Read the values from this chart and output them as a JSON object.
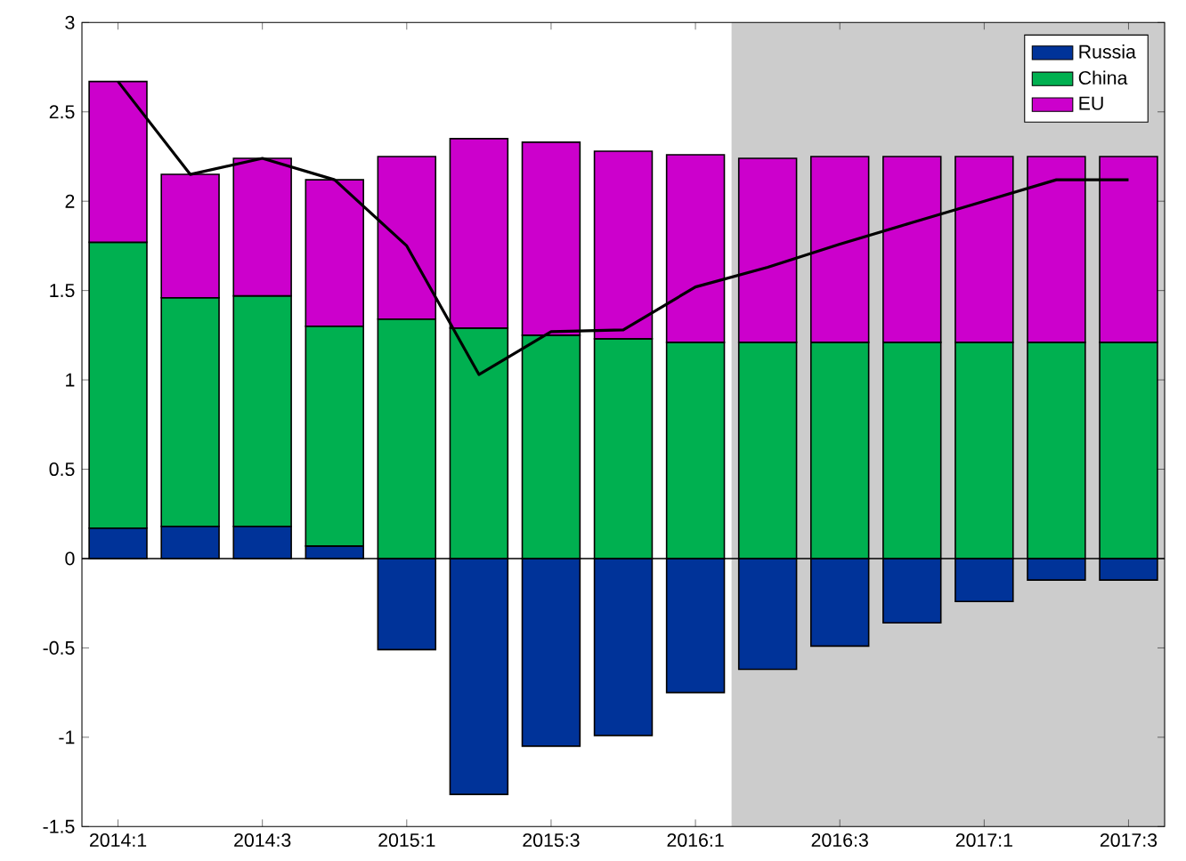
{
  "chart_data": {
    "type": "bar",
    "stacked": true,
    "categories": [
      "2014:1",
      null,
      "2014:3",
      null,
      "2015:1",
      null,
      "2015:3",
      null,
      "2016:1",
      null,
      "2016:3",
      null,
      "2017:1",
      null,
      "2017:3"
    ],
    "series": [
      {
        "name": "Russia",
        "color": "#003399",
        "values": [
          0.17,
          0.18,
          0.18,
          0.07,
          -0.51,
          -1.32,
          -1.05,
          -0.99,
          -0.75,
          -0.62,
          -0.49,
          -0.36,
          -0.24,
          -0.12,
          -0.12
        ]
      },
      {
        "name": "China",
        "color": "#00b050",
        "values": [
          1.6,
          1.28,
          1.29,
          1.23,
          1.34,
          1.29,
          1.25,
          1.23,
          1.21,
          1.21,
          1.21,
          1.21,
          1.21,
          1.21,
          1.21
        ]
      },
      {
        "name": "EU",
        "color": "#cc00cc",
        "values": [
          0.9,
          0.69,
          0.77,
          0.82,
          0.91,
          1.06,
          1.08,
          1.05,
          1.05,
          1.03,
          1.04,
          1.04,
          1.04,
          1.04,
          1.04
        ]
      },
      {
        "type": "line",
        "color": "#000000",
        "values": [
          2.67,
          2.15,
          2.24,
          2.12,
          1.75,
          1.03,
          1.27,
          1.28,
          1.52,
          1.63,
          1.76,
          1.88,
          2.0,
          2.12,
          2.12
        ]
      }
    ],
    "ylim": [
      -1.5,
      3
    ],
    "yticks": [
      -1.5,
      -1,
      -0.5,
      0,
      0.5,
      1,
      1.5,
      2,
      2.5,
      3
    ],
    "ref_lines": [
      {
        "axis": "y",
        "value": 0,
        "color": "#000000"
      }
    ],
    "legend": "top right"
  }
}
